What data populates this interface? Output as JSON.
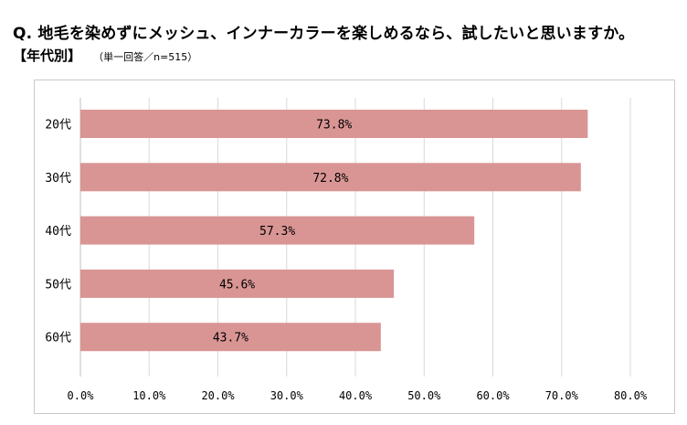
{
  "header": {
    "question": "Q. 地毛を染めずにメッシュ、インナーカラーを楽しめるなら、試したいと思いますか。",
    "segment": "【年代別】",
    "note": "（単一回答／n=515）"
  },
  "chart_data": {
    "type": "bar",
    "orientation": "horizontal",
    "categories": [
      "20代",
      "30代",
      "40代",
      "50代",
      "60代"
    ],
    "values": [
      73.8,
      72.8,
      57.3,
      45.6,
      43.7
    ],
    "value_labels": [
      "73.8%",
      "72.8%",
      "57.3%",
      "45.6%",
      "43.7%"
    ],
    "x_ticks": [
      "0.0%",
      "10.0%",
      "20.0%",
      "30.0%",
      "40.0%",
      "50.0%",
      "60.0%",
      "70.0%",
      "80.0%"
    ],
    "xlim": [
      0,
      80
    ],
    "grid": true,
    "bar_color": "#d99594",
    "grid_color": "#d9d9d9",
    "axis_color": "#bfbfbf"
  }
}
